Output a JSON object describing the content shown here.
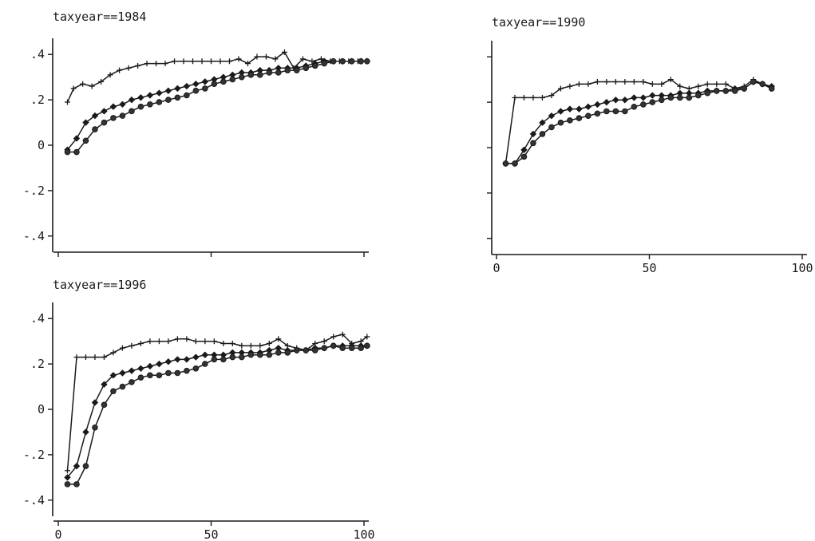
{
  "chart_data": [
    {
      "type": "line",
      "title": "taxyear==1984",
      "ylim": [
        -0.45,
        0.45
      ],
      "xlim": [
        0,
        100
      ],
      "yticks": [
        ".4",
        ".2",
        "0",
        "-.2",
        "-.4"
      ],
      "ytick_values": [
        0.4,
        0.2,
        0,
        -0.2,
        -0.4
      ],
      "xticks": [],
      "xtick_values": [
        0,
        50,
        100
      ],
      "grid": false,
      "series": [
        {
          "marker": "plus",
          "x": [
            3,
            5,
            8,
            11,
            14,
            17,
            20,
            23,
            26,
            29,
            32,
            35,
            38,
            41,
            44,
            47,
            50,
            53,
            56,
            59,
            62,
            65,
            68,
            71,
            74,
            77,
            80,
            83,
            86,
            89,
            92,
            95,
            98,
            101
          ],
          "values": [
            0.19,
            0.25,
            0.27,
            0.26,
            0.28,
            0.31,
            0.33,
            0.34,
            0.35,
            0.36,
            0.36,
            0.36,
            0.37,
            0.37,
            0.37,
            0.37,
            0.37,
            0.37,
            0.37,
            0.38,
            0.36,
            0.39,
            0.39,
            0.38,
            0.41,
            0.34,
            0.38,
            0.37,
            0.38,
            0.37,
            0.37,
            0.37,
            0.37,
            0.37
          ]
        },
        {
          "marker": "diamond",
          "x": [
            3,
            6,
            9,
            12,
            15,
            18,
            21,
            24,
            27,
            30,
            33,
            36,
            39,
            42,
            45,
            48,
            51,
            54,
            57,
            60,
            63,
            66,
            69,
            72,
            75,
            78,
            81,
            84,
            87,
            90,
            93,
            96,
            99,
            101
          ],
          "values": [
            -0.02,
            0.03,
            0.1,
            0.13,
            0.15,
            0.17,
            0.18,
            0.2,
            0.21,
            0.22,
            0.23,
            0.24,
            0.25,
            0.26,
            0.27,
            0.28,
            0.29,
            0.3,
            0.31,
            0.32,
            0.32,
            0.33,
            0.33,
            0.34,
            0.34,
            0.34,
            0.35,
            0.36,
            0.37,
            0.37,
            0.37,
            0.37,
            0.37,
            0.37
          ]
        },
        {
          "marker": "circle",
          "x": [
            3,
            6,
            9,
            12,
            15,
            18,
            21,
            24,
            27,
            30,
            33,
            36,
            39,
            42,
            45,
            48,
            51,
            54,
            57,
            60,
            63,
            66,
            69,
            72,
            75,
            78,
            81,
            84,
            87,
            90,
            93,
            96,
            99,
            101
          ],
          "values": [
            -0.03,
            -0.03,
            0.02,
            0.07,
            0.1,
            0.12,
            0.13,
            0.15,
            0.17,
            0.18,
            0.19,
            0.2,
            0.21,
            0.22,
            0.24,
            0.25,
            0.27,
            0.28,
            0.29,
            0.3,
            0.31,
            0.31,
            0.32,
            0.32,
            0.33,
            0.33,
            0.34,
            0.35,
            0.36,
            0.37,
            0.37,
            0.37,
            0.37,
            0.37
          ]
        }
      ]
    },
    {
      "type": "line",
      "title": "taxyear==1990",
      "ylim": [
        -0.45,
        0.45
      ],
      "xlim": [
        0,
        100
      ],
      "yticks": [],
      "ytick_values": [
        0.4,
        0.2,
        0,
        -0.2,
        -0.4
      ],
      "xticks": [
        "0",
        "50",
        "100"
      ],
      "xtick_values": [
        0,
        50,
        100
      ],
      "grid": false,
      "series": [
        {
          "marker": "plus",
          "x": [
            3,
            6,
            9,
            12,
            15,
            18,
            21,
            24,
            27,
            30,
            33,
            36,
            39,
            42,
            45,
            48,
            51,
            54,
            57,
            60,
            63,
            66,
            69,
            72,
            75,
            78,
            81,
            84,
            87,
            90
          ],
          "values": [
            -0.07,
            0.22,
            0.22,
            0.22,
            0.22,
            0.23,
            0.26,
            0.27,
            0.28,
            0.28,
            0.29,
            0.29,
            0.29,
            0.29,
            0.29,
            0.29,
            0.28,
            0.28,
            0.3,
            0.27,
            0.26,
            0.27,
            0.28,
            0.28,
            0.28,
            0.26,
            0.27,
            0.3,
            0.28,
            0.26
          ]
        },
        {
          "marker": "diamond",
          "x": [
            3,
            6,
            9,
            12,
            15,
            18,
            21,
            24,
            27,
            30,
            33,
            36,
            39,
            42,
            45,
            48,
            51,
            54,
            57,
            60,
            63,
            66,
            69,
            72,
            75,
            78,
            81,
            84,
            87,
            90
          ],
          "values": [
            -0.07,
            -0.07,
            -0.01,
            0.06,
            0.11,
            0.14,
            0.16,
            0.17,
            0.17,
            0.18,
            0.19,
            0.2,
            0.21,
            0.21,
            0.22,
            0.22,
            0.23,
            0.23,
            0.23,
            0.24,
            0.24,
            0.24,
            0.25,
            0.25,
            0.25,
            0.26,
            0.26,
            0.29,
            0.28,
            0.27
          ]
        },
        {
          "marker": "circle",
          "x": [
            3,
            6,
            9,
            12,
            15,
            18,
            21,
            24,
            27,
            30,
            33,
            36,
            39,
            42,
            45,
            48,
            51,
            54,
            57,
            60,
            63,
            66,
            69,
            72,
            75,
            78,
            81,
            84,
            87,
            90
          ],
          "values": [
            -0.07,
            -0.07,
            -0.04,
            0.02,
            0.06,
            0.09,
            0.11,
            0.12,
            0.13,
            0.14,
            0.15,
            0.16,
            0.16,
            0.16,
            0.18,
            0.19,
            0.2,
            0.21,
            0.22,
            0.22,
            0.22,
            0.23,
            0.24,
            0.25,
            0.25,
            0.25,
            0.26,
            0.29,
            0.28,
            0.26
          ]
        }
      ]
    },
    {
      "type": "line",
      "title": "taxyear==1996",
      "ylim": [
        -0.45,
        0.45
      ],
      "xlim": [
        0,
        100
      ],
      "yticks": [
        ".4",
        ".2",
        "0",
        "-.2",
        "-.4"
      ],
      "ytick_values": [
        0.4,
        0.2,
        0,
        -0.2,
        -0.4
      ],
      "xticks": [
        "0",
        "50",
        "100"
      ],
      "xtick_values": [
        0,
        50,
        100
      ],
      "grid": false,
      "series": [
        {
          "marker": "plus",
          "x": [
            3,
            6,
            9,
            12,
            15,
            18,
            21,
            24,
            27,
            30,
            33,
            36,
            39,
            42,
            45,
            48,
            51,
            54,
            57,
            60,
            63,
            66,
            69,
            72,
            75,
            78,
            81,
            84,
            87,
            90,
            93,
            96,
            99,
            101
          ],
          "values": [
            -0.27,
            0.23,
            0.23,
            0.23,
            0.23,
            0.25,
            0.27,
            0.28,
            0.29,
            0.3,
            0.3,
            0.3,
            0.31,
            0.31,
            0.3,
            0.3,
            0.3,
            0.29,
            0.29,
            0.28,
            0.28,
            0.28,
            0.29,
            0.31,
            0.28,
            0.27,
            0.26,
            0.29,
            0.3,
            0.32,
            0.33,
            0.29,
            0.3,
            0.32
          ]
        },
        {
          "marker": "diamond",
          "x": [
            3,
            6,
            9,
            12,
            15,
            18,
            21,
            24,
            27,
            30,
            33,
            36,
            39,
            42,
            45,
            48,
            51,
            54,
            57,
            60,
            63,
            66,
            69,
            72,
            75,
            78,
            81,
            84,
            87,
            90,
            93,
            96,
            99,
            101
          ],
          "values": [
            -0.3,
            -0.25,
            -0.1,
            0.03,
            0.11,
            0.15,
            0.16,
            0.17,
            0.18,
            0.19,
            0.2,
            0.21,
            0.22,
            0.22,
            0.23,
            0.24,
            0.24,
            0.24,
            0.25,
            0.25,
            0.25,
            0.25,
            0.26,
            0.27,
            0.26,
            0.26,
            0.26,
            0.27,
            0.27,
            0.28,
            0.28,
            0.28,
            0.28,
            0.28
          ]
        },
        {
          "marker": "circle",
          "x": [
            3,
            6,
            9,
            12,
            15,
            18,
            21,
            24,
            27,
            30,
            33,
            36,
            39,
            42,
            45,
            48,
            51,
            54,
            57,
            60,
            63,
            66,
            69,
            72,
            75,
            78,
            81,
            84,
            87,
            90,
            93,
            96,
            99,
            101
          ],
          "values": [
            -0.33,
            -0.33,
            -0.25,
            -0.08,
            0.02,
            0.08,
            0.1,
            0.12,
            0.14,
            0.15,
            0.15,
            0.16,
            0.16,
            0.17,
            0.18,
            0.2,
            0.22,
            0.22,
            0.23,
            0.23,
            0.24,
            0.24,
            0.24,
            0.25,
            0.25,
            0.26,
            0.26,
            0.26,
            0.27,
            0.28,
            0.27,
            0.27,
            0.27,
            0.28
          ]
        }
      ]
    }
  ]
}
